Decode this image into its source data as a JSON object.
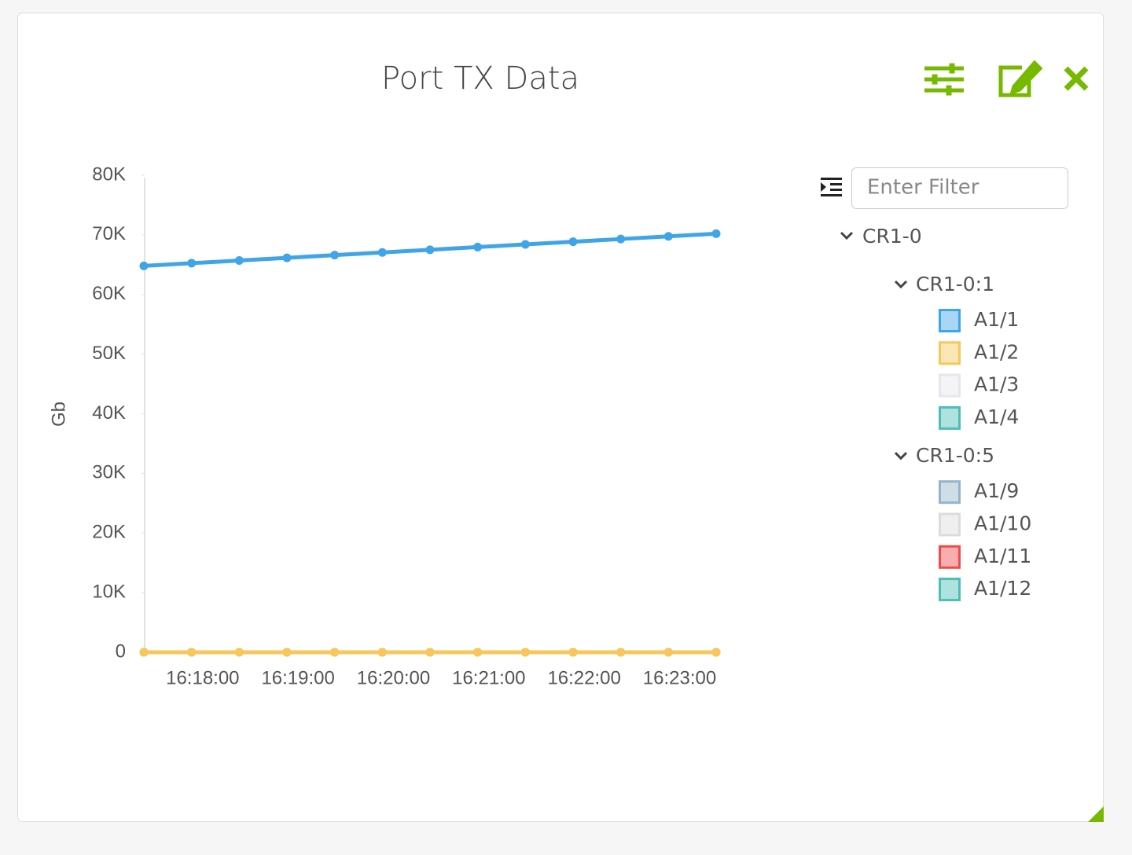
{
  "chart_data": {
    "type": "line",
    "title": "Port TX Data",
    "y_label": "Gb",
    "filter_placeholder": "Enter Filter",
    "x": [
      "16:17:23",
      "16:17:53",
      "16:18:23",
      "16:18:53",
      "16:19:23",
      "16:19:53",
      "16:20:23",
      "16:20:53",
      "16:21:23",
      "16:21:53",
      "16:22:23",
      "16:22:53",
      "16:23:23"
    ],
    "xlim": [
      "16:17:23",
      "16:23:23"
    ],
    "xticks": [
      "16:18:00",
      "16:19:00",
      "16:20:00",
      "16:21:00",
      "16:22:00",
      "16:23:00"
    ],
    "ylim": [
      0,
      80000
    ],
    "yticks": [
      {
        "value": 0,
        "label": "0"
      },
      {
        "value": 10000,
        "label": "10K"
      },
      {
        "value": 20000,
        "label": "20K"
      },
      {
        "value": 30000,
        "label": "30K"
      },
      {
        "value": 40000,
        "label": "40K"
      },
      {
        "value": 50000,
        "label": "50K"
      },
      {
        "value": 60000,
        "label": "60K"
      },
      {
        "value": 70000,
        "label": "70K"
      },
      {
        "value": 80000,
        "label": "80K"
      }
    ],
    "grid": false,
    "tree_root": "CR1-0",
    "groups": [
      {
        "name": "CR1-0:1",
        "series": [
          {
            "name": "A1/1",
            "color": "#3fa5e6",
            "values": [
              64800,
              65250,
              65700,
              66150,
              66600,
              67050,
              67500,
              67950,
              68400,
              68850,
              69300,
              69750,
              70200
            ]
          },
          {
            "name": "A1/2",
            "color": "#f7c75a",
            "values": [
              0,
              0,
              0,
              0,
              0,
              0,
              0,
              0,
              0,
              0,
              0,
              0,
              0
            ]
          },
          {
            "name": "A1/3",
            "color": "#e6e6ec",
            "values": [
              0,
              0,
              0,
              0,
              0,
              0,
              0,
              0,
              0,
              0,
              0,
              0,
              0
            ]
          },
          {
            "name": "A1/4",
            "color": "#4dbdb6",
            "values": [
              0,
              0,
              0,
              0,
              0,
              0,
              0,
              0,
              0,
              0,
              0,
              0,
              0
            ]
          }
        ]
      },
      {
        "name": "CR1-0:5",
        "series": [
          {
            "name": "A1/9",
            "color": "#94b4c8",
            "values": [
              0,
              0,
              0,
              0,
              0,
              0,
              0,
              0,
              0,
              0,
              0,
              0,
              0
            ]
          },
          {
            "name": "A1/10",
            "color": "#dcdcdc",
            "values": [
              0,
              0,
              0,
              0,
              0,
              0,
              0,
              0,
              0,
              0,
              0,
              0,
              0
            ]
          },
          {
            "name": "A1/11",
            "color": "#ef4b4b",
            "values": [
              0,
              0,
              0,
              0,
              0,
              0,
              0,
              0,
              0,
              0,
              0,
              0,
              0
            ]
          },
          {
            "name": "A1/12",
            "color": "#4dbdb6",
            "values": [
              0,
              0,
              0,
              0,
              0,
              0,
              0,
              0,
              0,
              0,
              0,
              0,
              0
            ]
          }
        ]
      }
    ]
  }
}
